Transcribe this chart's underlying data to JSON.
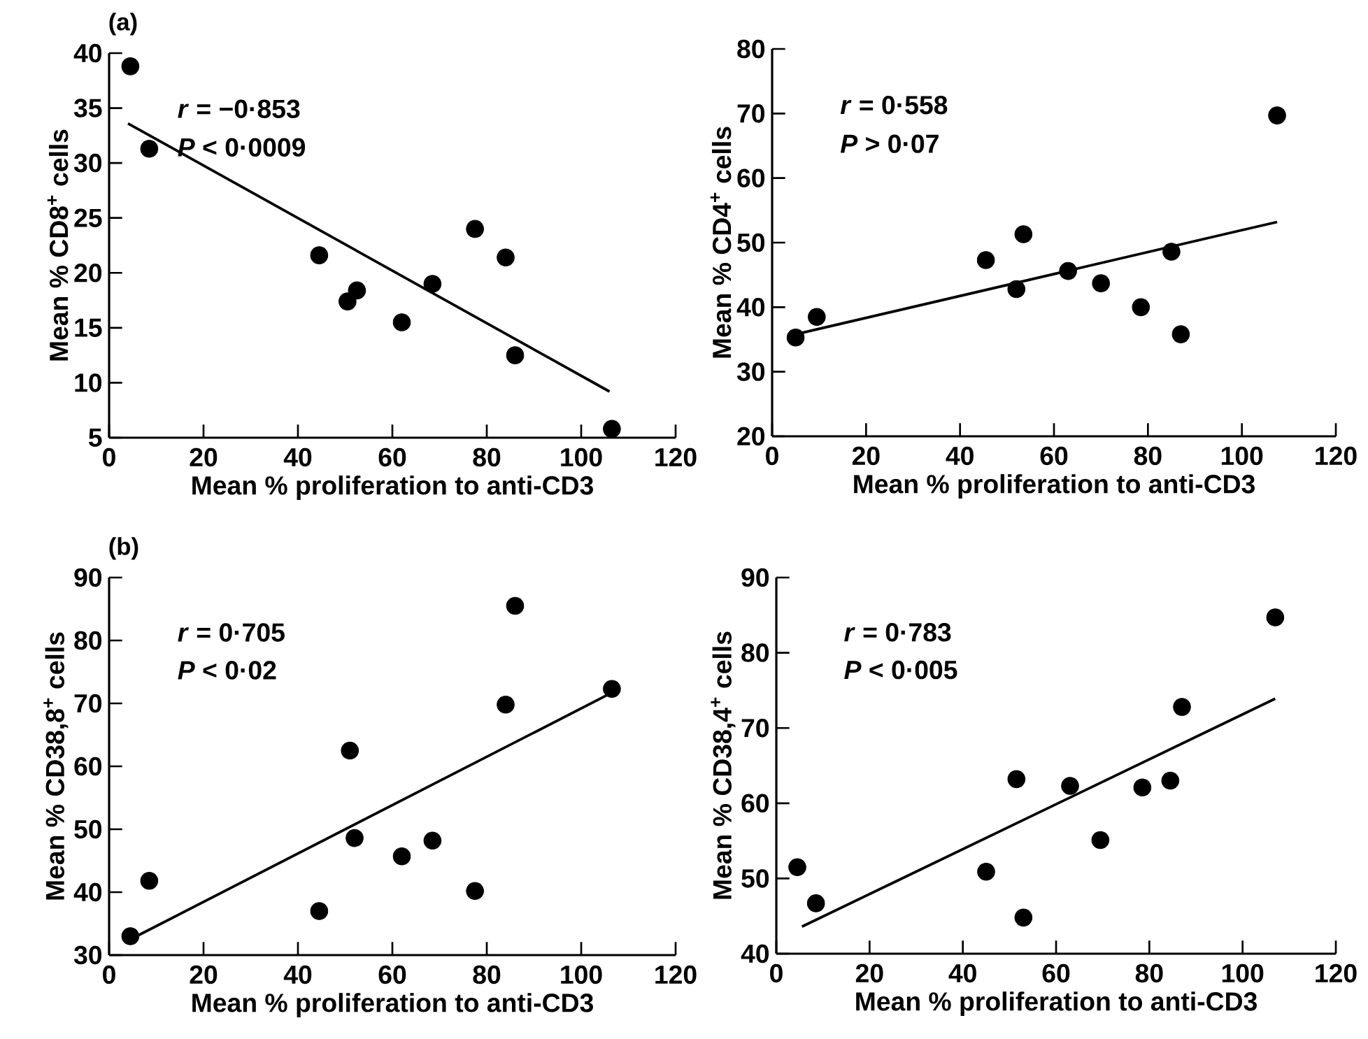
{
  "chart_data": [
    {
      "type": "scatter",
      "title": "(a)",
      "xlabel": "Mean % proliferation to anti-CD3",
      "ylabel": "Mean % CD8$^{+}$ cells",
      "annotations": [
        "*r* = −0·853",
        "*P* < 0·0009"
      ],
      "xlim": [
        0,
        120
      ],
      "ylim": [
        5,
        40
      ],
      "xticks": [
        0,
        20,
        40,
        60,
        80,
        100,
        120
      ],
      "yticks": [
        5,
        10,
        15,
        20,
        25,
        30,
        35,
        40
      ],
      "series": [
        {
          "color": "#000000",
          "marker": "circle",
          "x": [
            4.5,
            8.5,
            44.5,
            50.5,
            52.5,
            62,
            68.5,
            77.5,
            84,
            86,
            106.5
          ],
          "values": [
            38.8,
            31.3,
            21.6,
            17.4,
            18.4,
            15.5,
            19,
            24,
            21.4,
            12.5,
            5.8
          ]
        },
        {
          "type": "line",
          "color": "#000000",
          "marker": "none",
          "line_style": "solid",
          "x": [
            4,
            106
          ],
          "values": [
            33.6,
            9.2
          ]
        }
      ]
    },
    {
      "type": "scatter",
      "xlabel": "Mean % proliferation to anti-CD3",
      "ylabel": "Mean % CD4$^{+}$ cells",
      "annotations": [
        "*r* = 0·558",
        "*P* > 0·07"
      ],
      "xlim": [
        0,
        120
      ],
      "ylim": [
        20,
        80
      ],
      "xticks": [
        0,
        20,
        40,
        60,
        80,
        100,
        120
      ],
      "yticks": [
        20,
        30,
        40,
        50,
        60,
        70,
        80
      ],
      "series": [
        {
          "color": "#000000",
          "marker": "circle",
          "x": [
            5,
            9.5,
            45.5,
            52,
            53.5,
            63,
            70,
            78.5,
            85,
            87,
            107.5
          ],
          "values": [
            35.3,
            38.5,
            47.3,
            42.8,
            51.3,
            45.6,
            43.7,
            40,
            48.6,
            35.8,
            69.7
          ]
        },
        {
          "type": "line",
          "color": "#000000",
          "marker": "none",
          "line_style": "solid",
          "x": [
            5,
            107.5
          ],
          "values": [
            35.8,
            53.2
          ]
        }
      ]
    },
    {
      "type": "scatter",
      "title": "(b)",
      "xlabel": "Mean % proliferation to anti-CD3",
      "ylabel": "Mean % CD38,8$^{+}$ cells",
      "annotations": [
        "*r* = 0·705",
        "*P* < 0·02"
      ],
      "xlim": [
        0,
        120
      ],
      "ylim": [
        30,
        90
      ],
      "xticks": [
        0,
        20,
        40,
        60,
        80,
        100,
        120
      ],
      "yticks": [
        30,
        40,
        50,
        60,
        70,
        80,
        90
      ],
      "series": [
        {
          "color": "#000000",
          "marker": "circle",
          "x": [
            4.5,
            8.5,
            44.5,
            51,
            52,
            62,
            68.5,
            77.5,
            84,
            86,
            106.5
          ],
          "values": [
            33,
            41.8,
            37,
            62.5,
            48.6,
            45.7,
            48.2,
            40.2,
            69.8,
            85.5,
            72.3
          ]
        },
        {
          "type": "line",
          "color": "#000000",
          "marker": "none",
          "line_style": "solid",
          "x": [
            4.5,
            106.5
          ],
          "values": [
            32.5,
            71.7
          ]
        }
      ]
    },
    {
      "type": "scatter",
      "xlabel": "Mean % proliferation to anti-CD3",
      "ylabel": "Mean % CD38,4$^{+}$ cells",
      "annotations": [
        "*r* = 0·783",
        "*P* < 0·005"
      ],
      "xlim": [
        0,
        120
      ],
      "ylim": [
        40,
        90
      ],
      "xticks": [
        0,
        20,
        40,
        60,
        80,
        100,
        120
      ],
      "yticks": [
        40,
        50,
        60,
        70,
        80,
        90
      ],
      "series": [
        {
          "color": "#000000",
          "marker": "circle",
          "x": [
            4.5,
            8.5,
            45,
            51.5,
            53,
            63,
            69.5,
            78.5,
            84.5,
            87,
            107
          ],
          "values": [
            51.5,
            46.7,
            50.9,
            63.2,
            44.8,
            62.3,
            55.1,
            62.1,
            63,
            72.8,
            84.7
          ]
        },
        {
          "type": "line",
          "color": "#000000",
          "marker": "none",
          "line_style": "solid",
          "x": [
            5.5,
            107
          ],
          "values": [
            43.6,
            73.9
          ]
        }
      ]
    }
  ]
}
